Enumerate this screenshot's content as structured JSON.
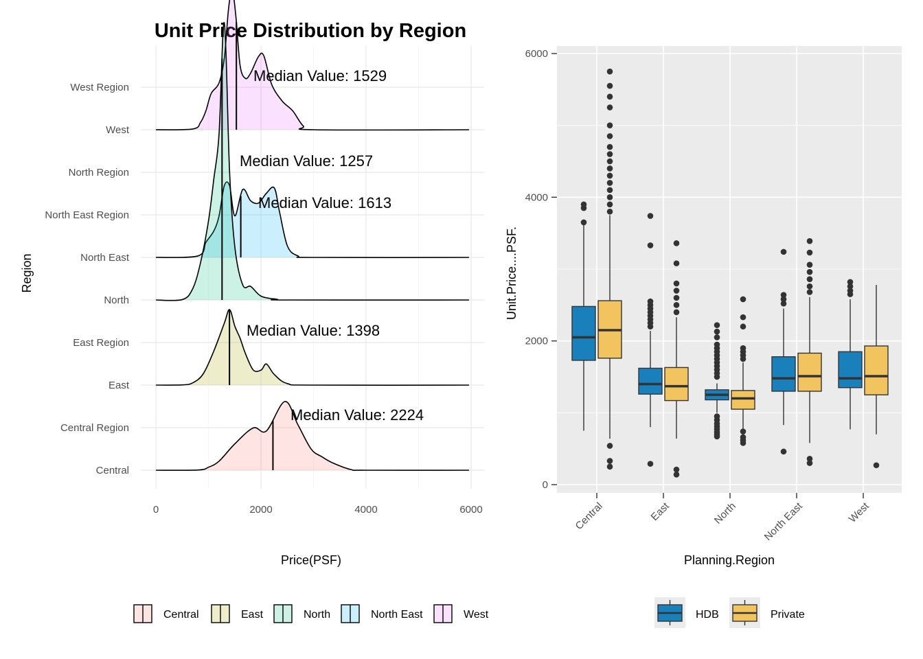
{
  "chart_data": [
    {
      "type": "ridgeline",
      "title": "Unit Price Distribution by Region",
      "xlabel": "Price(PSF)",
      "ylabel": "Region",
      "xlim": [
        0,
        6000
      ],
      "xticks": [
        "0",
        "2000",
        "4000",
        "6000"
      ],
      "grid": true,
      "y_tick_labels": [
        "Central",
        "Central Region",
        "East",
        "East Region",
        "North",
        "North East",
        "North East Region",
        "North Region",
        "West",
        "West Region"
      ],
      "legend_position": "bottom",
      "legend": [
        "Central",
        "East",
        "North",
        "North East",
        "West"
      ],
      "series": [
        {
          "name": "Central",
          "color": "#F8766D",
          "median": 2224,
          "median_label": "Median Value: 2224",
          "density": [
            [
              0,
              0
            ],
            [
              800,
              0.003
            ],
            [
              1000,
              0.04
            ],
            [
              1200,
              0.12
            ],
            [
              1500,
              0.35
            ],
            [
              1850,
              0.56
            ],
            [
              2100,
              0.52
            ],
            [
              2450,
              0.91
            ],
            [
              2700,
              0.6
            ],
            [
              2950,
              0.28
            ],
            [
              3150,
              0.18
            ],
            [
              3350,
              0.1
            ],
            [
              3700,
              0.01
            ],
            [
              4000,
              0
            ],
            [
              5950,
              0
            ]
          ]
        },
        {
          "name": "East",
          "color": "#A3A500",
          "median": 1398,
          "median_label": "Median Value: 1398",
          "density": [
            [
              0,
              0
            ],
            [
              500,
              0.003
            ],
            [
              700,
              0.03
            ],
            [
              900,
              0.15
            ],
            [
              1100,
              0.45
            ],
            [
              1300,
              0.82
            ],
            [
              1400,
              1.0
            ],
            [
              1500,
              0.78
            ],
            [
              1600,
              0.62
            ],
            [
              1700,
              0.42
            ],
            [
              1850,
              0.2
            ],
            [
              2000,
              0.2
            ],
            [
              2100,
              0.28
            ],
            [
              2250,
              0.14
            ],
            [
              2500,
              0.02
            ],
            [
              3000,
              0
            ],
            [
              5950,
              0
            ]
          ]
        },
        {
          "name": "North",
          "color": "#00BF7D",
          "median": 1257,
          "median_label": "Median Value: 1257",
          "density": [
            [
              0,
              0
            ],
            [
              500,
              0.005
            ],
            [
              700,
              0.15
            ],
            [
              850,
              0.5
            ],
            [
              1000,
              1.05
            ],
            [
              1100,
              1.6
            ],
            [
              1200,
              2.2
            ],
            [
              1280,
              3.6
            ],
            [
              1330,
              3.3
            ],
            [
              1400,
              1.7
            ],
            [
              1500,
              0.7
            ],
            [
              1650,
              0.2
            ],
            [
              1800,
              0.18
            ],
            [
              2000,
              0.05
            ],
            [
              2300,
              0.01
            ],
            [
              2500,
              0
            ],
            [
              5950,
              0
            ]
          ]
        },
        {
          "name": "North East",
          "color": "#00B0F6",
          "median": 1613,
          "median_label": "Median Value: 1613",
          "density": [
            [
              0,
              0
            ],
            [
              800,
              0.02
            ],
            [
              950,
              0.2
            ],
            [
              1100,
              0.35
            ],
            [
              1200,
              0.55
            ],
            [
              1300,
              0.95
            ],
            [
              1400,
              0.95
            ],
            [
              1500,
              0.55
            ],
            [
              1650,
              0.9
            ],
            [
              1800,
              0.75
            ],
            [
              1950,
              0.72
            ],
            [
              2100,
              0.85
            ],
            [
              2250,
              0.92
            ],
            [
              2350,
              0.6
            ],
            [
              2500,
              0.15
            ],
            [
              2700,
              0.02
            ],
            [
              3000,
              0
            ],
            [
              5950,
              0
            ]
          ]
        },
        {
          "name": "West",
          "color": "#E76BF3",
          "median": 1529,
          "median_label": "Median Value: 1529",
          "density": [
            [
              0,
              0
            ],
            [
              700,
              0.01
            ],
            [
              850,
              0.1
            ],
            [
              950,
              0.25
            ],
            [
              1050,
              0.48
            ],
            [
              1200,
              0.62
            ],
            [
              1300,
              0.95
            ],
            [
              1380,
              1.6
            ],
            [
              1450,
              1.85
            ],
            [
              1520,
              1.5
            ],
            [
              1600,
              0.85
            ],
            [
              1700,
              0.68
            ],
            [
              1800,
              0.75
            ],
            [
              1950,
              0.97
            ],
            [
              2050,
              0.98
            ],
            [
              2200,
              0.6
            ],
            [
              2400,
              0.38
            ],
            [
              2600,
              0.25
            ],
            [
              2800,
              0.05
            ],
            [
              3000,
              0
            ],
            [
              5950,
              0
            ]
          ]
        }
      ]
    },
    {
      "type": "boxplot",
      "xlabel": "Planning.Region",
      "ylabel": "Unit.Price....PSF.",
      "ylim": [
        0,
        6000
      ],
      "yticks": [
        "0",
        "2000",
        "4000",
        "6000"
      ],
      "categories": [
        "Central",
        "East",
        "North",
        "North East",
        "West"
      ],
      "legend_position": "bottom",
      "series": [
        {
          "name": "HDB",
          "color": "#1A80BB",
          "boxes": [
            {
              "whisker_low": 750,
              "q1": 1730,
              "median": 2050,
              "q3": 2480,
              "whisker_high": 3620,
              "outliers": [
                3650,
                3850,
                3900
              ]
            },
            {
              "whisker_low": 800,
              "q1": 1260,
              "median": 1400,
              "q3": 1620,
              "whisker_high": 2140,
              "outliers": [
                290,
                2200,
                2250,
                2300,
                2350,
                2400,
                2450,
                2500,
                2550,
                3330,
                3740
              ]
            },
            {
              "whisker_low": 1000,
              "q1": 1180,
              "median": 1250,
              "q3": 1320,
              "whisker_high": 1410,
              "outliers": [
                670,
                700,
                730,
                770,
                810,
                850,
                900,
                950,
                1500,
                1550,
                1600,
                1650,
                1700,
                1750,
                1800,
                1850,
                1900,
                1950,
                2050,
                2130,
                2220
              ]
            },
            {
              "whisker_low": 830,
              "q1": 1300,
              "median": 1480,
              "q3": 1780,
              "whisker_high": 2450,
              "outliers": [
                460,
                2520,
                2580,
                2640,
                3240
              ]
            },
            {
              "whisker_low": 770,
              "q1": 1350,
              "median": 1480,
              "q3": 1850,
              "whisker_high": 2580,
              "outliers": [
                2650,
                2700,
                2760,
                2820
              ]
            }
          ]
        },
        {
          "name": "Private",
          "color": "#F2C45F",
          "boxes": [
            {
              "whisker_low": 640,
              "q1": 1760,
              "median": 2150,
              "q3": 2560,
              "whisker_high": 3750,
              "outliers": [
                250,
                330,
                540,
                3800,
                3900,
                4000,
                4100,
                4200,
                4300,
                4400,
                4500,
                4600,
                4700,
                4850,
                5000,
                5250,
                5400,
                5550,
                5750
              ]
            },
            {
              "whisker_low": 640,
              "q1": 1170,
              "median": 1370,
              "q3": 1630,
              "whisker_high": 2330,
              "outliers": [
                140,
                210,
                2400,
                2500,
                2600,
                2700,
                2800,
                3080,
                3360
              ]
            },
            {
              "whisker_low": 680,
              "q1": 1050,
              "median": 1200,
              "q3": 1310,
              "whisker_high": 1700,
              "outliers": [
                580,
                620,
                660,
                740,
                1750,
                1800,
                1850,
                1900,
                2200,
                2330,
                2580
              ]
            },
            {
              "whisker_low": 580,
              "q1": 1300,
              "median": 1510,
              "q3": 1830,
              "whisker_high": 2610,
              "outliers": [
                300,
                360,
                2680,
                2760,
                2860,
                2960,
                3060,
                3230,
                3390
              ]
            },
            {
              "whisker_low": 700,
              "q1": 1250,
              "median": 1510,
              "q3": 1930,
              "whisker_high": 2780,
              "outliers": [
                270
              ]
            }
          ]
        }
      ]
    }
  ]
}
